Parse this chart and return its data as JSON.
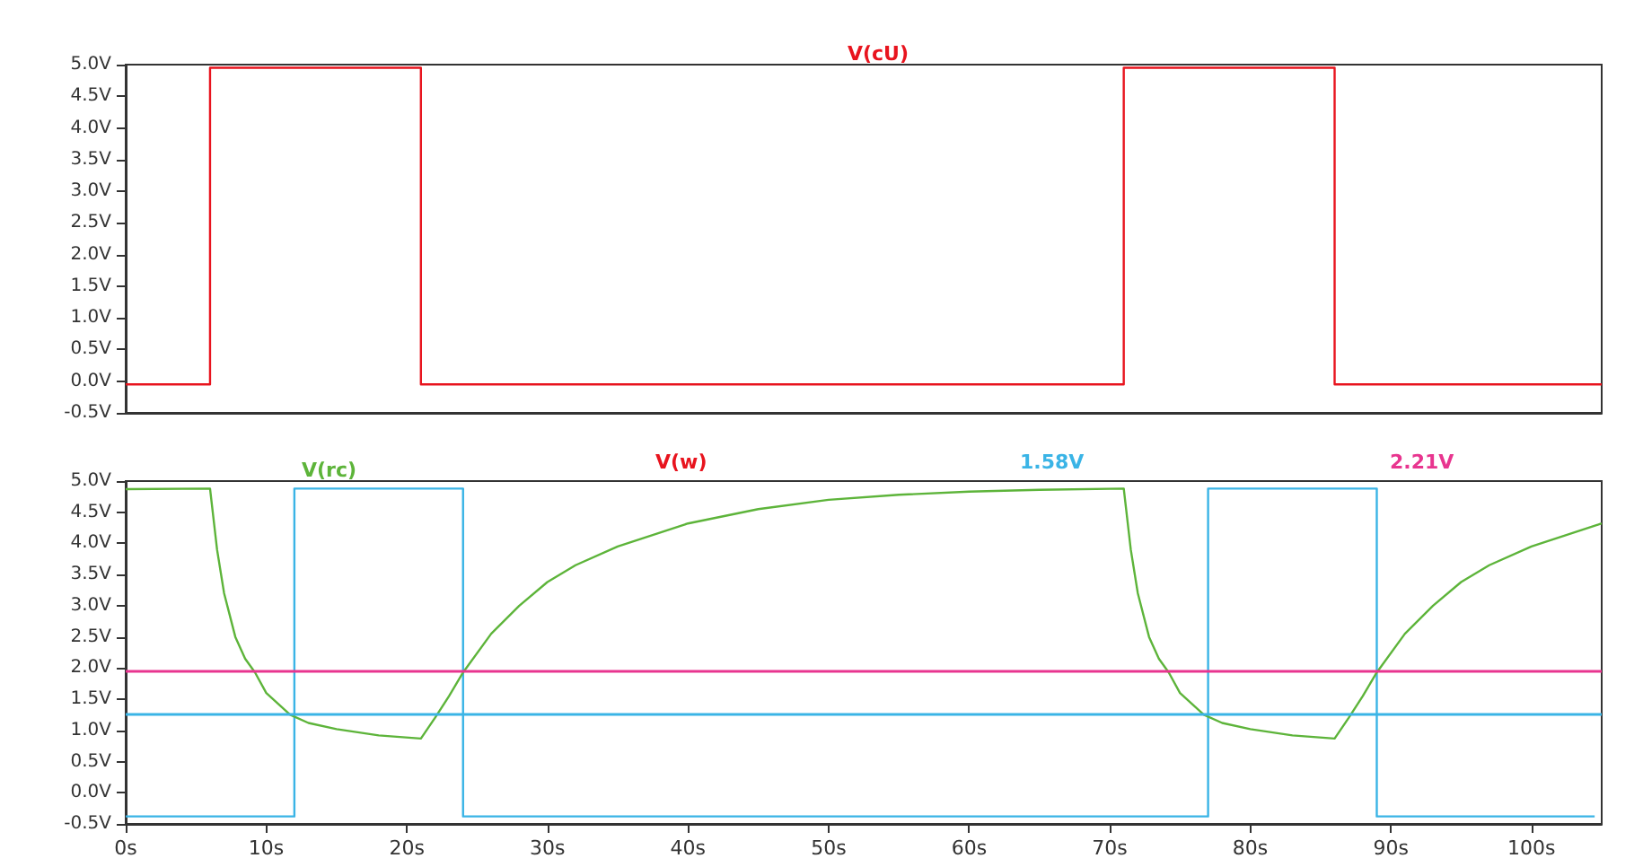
{
  "chart_data": [
    {
      "type": "step",
      "legend": "top",
      "tick_labels": "y",
      "marker": "none",
      "line_style": "solid",
      "grid": false,
      "xlim": [
        0,
        105
      ],
      "ylim": [
        -0.5,
        5.0
      ],
      "yticks": [
        {
          "value": -0.5,
          "label": "-0.5V"
        },
        {
          "value": 0,
          "label": "0.0V"
        },
        {
          "value": 0.5,
          "label": "0.5V"
        },
        {
          "value": 1,
          "label": "1.0V"
        },
        {
          "value": 1.5,
          "label": "1.5V"
        },
        {
          "value": 2,
          "label": "2.0V"
        },
        {
          "value": 2.5,
          "label": "2.5V"
        },
        {
          "value": 3,
          "label": "3.0V"
        },
        {
          "value": 3.5,
          "label": "3.5V"
        },
        {
          "value": 4,
          "label": "4.0V"
        },
        {
          "value": 4.5,
          "label": "4.5V"
        },
        {
          "value": 5,
          "label": "5.0V"
        }
      ],
      "series": [
        {
          "name": "V(cU)",
          "color": "#e8141e",
          "x": [
            0,
            6,
            21,
            71,
            86,
            105
          ],
          "values": [
            -0.05,
            4.95,
            -0.05,
            4.95,
            -0.05,
            -0.05
          ]
        }
      ]
    },
    {
      "type": "line",
      "legend": "top",
      "marker": "none",
      "line_style": "solid",
      "grid": false,
      "xlim": [
        0,
        105
      ],
      "ylim": [
        -0.5,
        5.0
      ],
      "xticks": [
        {
          "value": 0,
          "label": "0s"
        },
        {
          "value": 10,
          "label": "10s"
        },
        {
          "value": 20,
          "label": "20s"
        },
        {
          "value": 30,
          "label": "30s"
        },
        {
          "value": 40,
          "label": "40s"
        },
        {
          "value": 50,
          "label": "50s"
        },
        {
          "value": 60,
          "label": "60s"
        },
        {
          "value": 70,
          "label": "70s"
        },
        {
          "value": 80,
          "label": "80s"
        },
        {
          "value": 90,
          "label": "90s"
        },
        {
          "value": 100,
          "label": "100s"
        }
      ],
      "yticks": [
        {
          "value": -0.5,
          "label": "-0.5V"
        },
        {
          "value": 0,
          "label": "0.0V"
        },
        {
          "value": 0.5,
          "label": "0.5V"
        },
        {
          "value": 1,
          "label": "1.0V"
        },
        {
          "value": 1.5,
          "label": "1.5V"
        },
        {
          "value": 2,
          "label": "2.0V"
        },
        {
          "value": 2.5,
          "label": "2.5V"
        },
        {
          "value": 3,
          "label": "3.0V"
        },
        {
          "value": 3.5,
          "label": "3.5V"
        },
        {
          "value": 4,
          "label": "4.0V"
        },
        {
          "value": 4.5,
          "label": "4.5V"
        },
        {
          "value": 5,
          "label": "5.0V"
        }
      ],
      "annotations": [
        "V(w)"
      ],
      "ref_lines": [
        {
          "axis": "y",
          "value": 1.25,
          "label": "1.58V",
          "color": "#3ab4e6"
        },
        {
          "axis": "y",
          "value": 1.95,
          "label": "2.21V",
          "color": "#e8358f"
        }
      ],
      "series": [
        {
          "type": "step",
          "color": "#3ab4e6",
          "x": [
            0,
            12,
            24,
            77,
            89,
            104.5
          ],
          "values": [
            -0.38,
            4.88,
            -0.38,
            4.88,
            -0.38,
            -0.38
          ]
        },
        {
          "name": "V(rc)",
          "color": "#5db43a",
          "x": [
            0,
            6,
            6.5,
            7,
            7.8,
            8.5,
            9.2,
            10,
            11.7,
            13,
            15,
            18,
            21,
            22,
            23,
            24,
            26,
            28,
            30,
            32,
            35,
            40,
            45,
            50,
            55,
            60,
            65,
            71,
            71.5,
            72,
            72.8,
            73.5,
            74.2,
            75,
            76.7,
            78,
            80,
            83,
            86,
            87,
            88,
            89,
            91,
            93,
            95,
            97,
            100,
            105
          ],
          "values": [
            4.87,
            4.88,
            3.9,
            3.2,
            2.5,
            2.15,
            1.93,
            1.6,
            1.25,
            1.12,
            1.02,
            0.92,
            0.87,
            1.2,
            1.55,
            1.93,
            2.55,
            3.0,
            3.38,
            3.65,
            3.95,
            4.32,
            4.55,
            4.7,
            4.78,
            4.83,
            4.86,
            4.88,
            3.9,
            3.2,
            2.5,
            2.15,
            1.93,
            1.6,
            1.25,
            1.12,
            1.02,
            0.92,
            0.87,
            1.2,
            1.55,
            1.93,
            2.55,
            3.0,
            3.38,
            3.65,
            3.95,
            4.32
          ]
        }
      ]
    }
  ]
}
